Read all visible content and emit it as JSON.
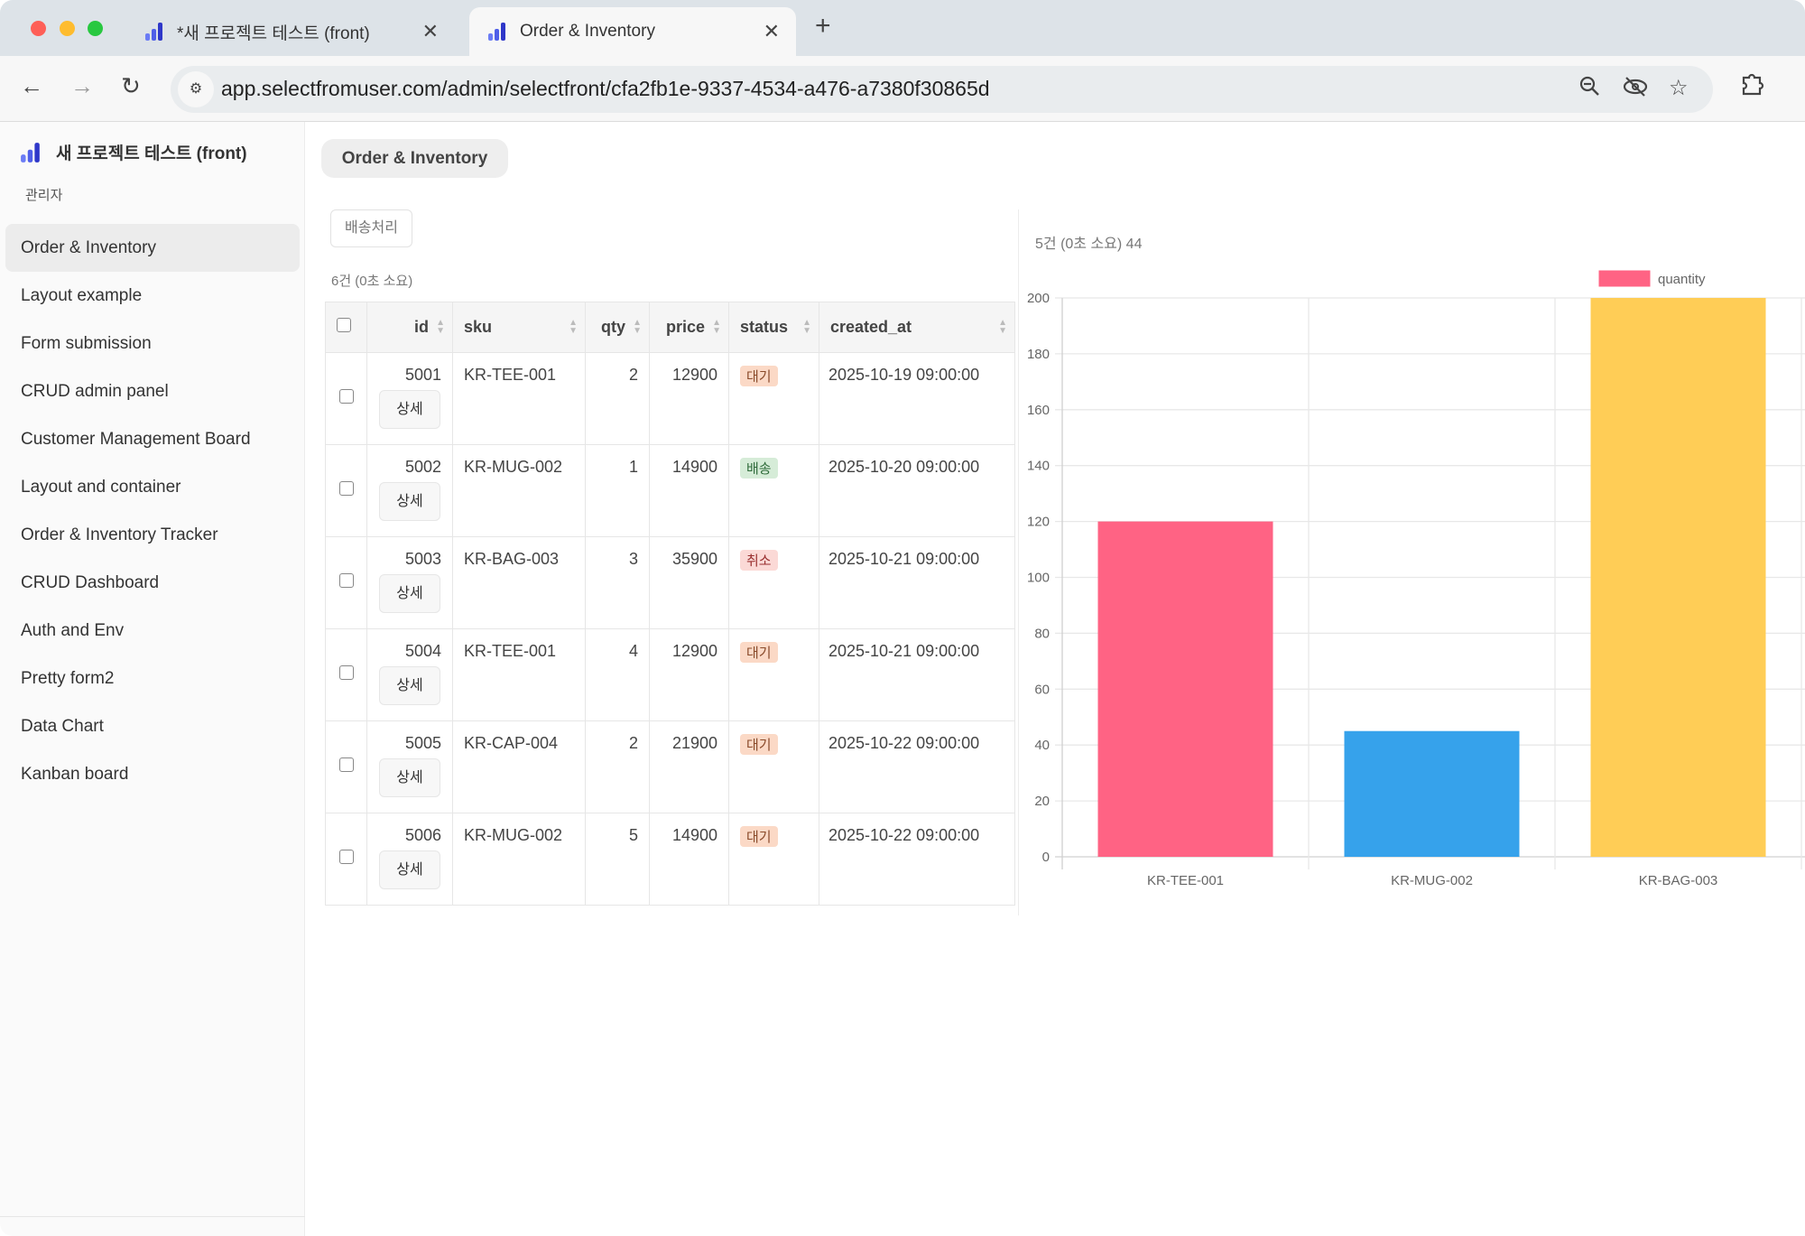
{
  "browser": {
    "tabs": [
      {
        "title": "*새 프로젝트 테스트 (front)",
        "active": false
      },
      {
        "title": "Order & Inventory",
        "active": true
      }
    ],
    "url": "app.selectfromuser.com/admin/selectfront/cfa2fb1e-9337-4534-a476-a7380f30865d",
    "icons": [
      "back-icon",
      "forward-icon",
      "reload-icon",
      "site-settings-icon",
      "zoom-out-icon",
      "eye-off-icon",
      "star-icon",
      "extensions-icon"
    ]
  },
  "sidebar": {
    "project": "새 프로젝트 테스트 (front)",
    "role": "관리자",
    "items": [
      {
        "label": "Order & Inventory",
        "active": true
      },
      {
        "label": "Layout example"
      },
      {
        "label": "Form submission"
      },
      {
        "label": "CRUD admin panel"
      },
      {
        "label": "Customer Management Board"
      },
      {
        "label": "Layout and container"
      },
      {
        "label": "Order & Inventory Tracker"
      },
      {
        "label": "CRUD Dashboard"
      },
      {
        "label": "Auth and Env"
      },
      {
        "label": "Pretty form2"
      },
      {
        "label": "Data Chart"
      },
      {
        "label": "Kanban board"
      }
    ]
  },
  "page": {
    "title": "Order & Inventory",
    "ship_button": "배송처리",
    "table_count": "6건 (0초 소요)",
    "detail_label": "상세",
    "columns": [
      "id",
      "sku",
      "qty",
      "price",
      "status",
      "created_at"
    ],
    "rows": [
      {
        "id": "5001",
        "sku": "KR-TEE-001",
        "qty": "2",
        "price": "12900",
        "status": "대기",
        "created_at": "2025-10-19 09:00:00"
      },
      {
        "id": "5002",
        "sku": "KR-MUG-002",
        "qty": "1",
        "price": "14900",
        "status": "배송",
        "created_at": "2025-10-20 09:00:00"
      },
      {
        "id": "5003",
        "sku": "KR-BAG-003",
        "qty": "3",
        "price": "35900",
        "status": "취소",
        "created_at": "2025-10-21 09:00:00"
      },
      {
        "id": "5004",
        "sku": "KR-TEE-001",
        "qty": "4",
        "price": "12900",
        "status": "대기",
        "created_at": "2025-10-21 09:00:00"
      },
      {
        "id": "5005",
        "sku": "KR-CAP-004",
        "qty": "2",
        "price": "21900",
        "status": "대기",
        "created_at": "2025-10-22 09:00:00"
      },
      {
        "id": "5006",
        "sku": "KR-MUG-002",
        "qty": "5",
        "price": "14900",
        "status": "대기",
        "created_at": "2025-10-22 09:00:00"
      }
    ],
    "status_colors": {
      "대기": {
        "bg": "#fbd9c6",
        "fg": "#8a4a2a"
      },
      "배송": {
        "bg": "#d6ecd8",
        "fg": "#2f6b3a"
      },
      "취소": {
        "bg": "#fbd9d6",
        "fg": "#9a3030"
      }
    }
  },
  "chart_data": {
    "type": "bar",
    "header": "5건 (0초 소요) 44",
    "categories": [
      "KR-TEE-001",
      "KR-MUG-002",
      "KR-BAG-003"
    ],
    "series": [
      {
        "name": "quantity",
        "values": [
          120,
          45,
          200
        ]
      }
    ],
    "colors": [
      "#ff6384",
      "#36a2eb",
      "#ffcd56"
    ],
    "ylim": [
      0,
      200
    ],
    "yticks": [
      0,
      20,
      40,
      60,
      80,
      100,
      120,
      140,
      160,
      180,
      200
    ],
    "grid": true,
    "legend": "top"
  }
}
